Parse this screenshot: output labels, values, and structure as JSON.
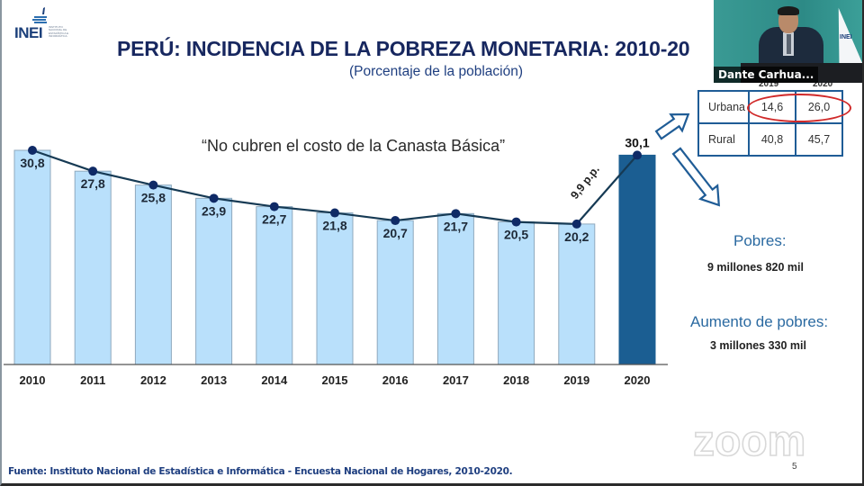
{
  "slide": {
    "logo_text": "INEI",
    "logo_subtext": "INSTITUTO NACIONAL DE ESTADÍSTICA E INFORMÁTICA",
    "title": "PERÚ: INCIDENCIA DE LA POBREZA MONETARIA: 2010-20",
    "subtitle": "(Porcentaje de la población)",
    "quote": "“No cubren el costo de la Canasta Básica”",
    "source": "Fuente: Instituto Nacional de Estadística e Informática - Encuesta Nacional de Hogares, 2010-2020.",
    "page_number": "5",
    "watermark": "zoom"
  },
  "area_table": {
    "columns": [
      "",
      "2019",
      "2020"
    ],
    "rows": [
      {
        "label": "Urbana",
        "values": [
          "14,6",
          "26,0"
        ],
        "highlighted": true
      },
      {
        "label": "Rural",
        "values": [
          "40,8",
          "45,7"
        ],
        "highlighted": false
      }
    ],
    "highlight_color": "#d02a2a"
  },
  "stats": {
    "poor_label": "Pobres:",
    "poor_value": "9 millones 820 mil",
    "increase_label": "Aumento de pobres:",
    "increase_value": "3 millones 330 mil"
  },
  "video": {
    "participant_name": "Dante Carhua..."
  },
  "colors": {
    "bar_light": "#b9e0fb",
    "bar_dark": "#1b5e92",
    "line": "#163a54",
    "marker": "#0f2a66",
    "title": "#17275f",
    "accent": "#2b6aa1"
  },
  "chart_data": {
    "type": "bar",
    "title": "PERÚ: INCIDENCIA DE LA POBREZA MONETARIA: 2010-2020",
    "subtitle": "(Porcentaje de la población)",
    "xlabel": "",
    "ylabel": "",
    "categories": [
      "2010",
      "2011",
      "2012",
      "2013",
      "2014",
      "2015",
      "2016",
      "2017",
      "2018",
      "2019",
      "2020"
    ],
    "values": [
      30.8,
      27.8,
      25.8,
      23.9,
      22.7,
      21.8,
      20.7,
      21.7,
      20.5,
      20.2,
      30.1
    ],
    "value_labels": [
      "30,8",
      "27,8",
      "25,8",
      "23,9",
      "22,7",
      "21,8",
      "20,7",
      "21,7",
      "20,5",
      "20,2",
      "30,1"
    ],
    "overlay_line": true,
    "highlighted_category": "2020",
    "annotation": "9,9 p.p.",
    "ylim": [
      0,
      32
    ],
    "grid": false,
    "legend": "none"
  }
}
